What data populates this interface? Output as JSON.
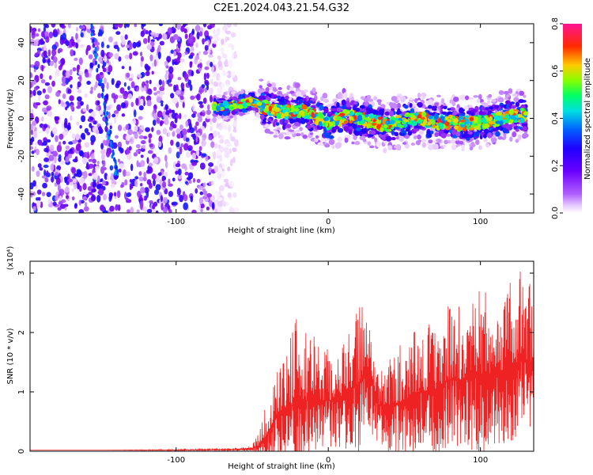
{
  "title": "C2E1.2024.043.21.54.G32",
  "colors": {
    "snr_line": "#ee2222",
    "spec_palette": [
      "#ffffff",
      "#e8c8ff",
      "#b060ff",
      "#7a00f0",
      "#1f00ff",
      "#0066ff",
      "#00e0e0",
      "#00ff66",
      "#88ff00",
      "#ffcc00",
      "#ff2a00",
      "#ff1493"
    ]
  },
  "chart_data": [
    {
      "type": "heatmap",
      "title": "C2E1.2024.043.21.54.G32",
      "xlabel": "Height of straight line (km)",
      "ylabel": "Frequency (Hz)",
      "xlim": [
        -196,
        135
      ],
      "ylim": [
        -50,
        50
      ],
      "x_ticks": [
        -100,
        0,
        100
      ],
      "y_ticks": [
        -40,
        -20,
        0,
        20,
        40
      ],
      "colorbar": {
        "label": "Normalized spectral amplitude",
        "range": [
          0.0,
          0.8
        ],
        "ticks": [
          0.0,
          0.2,
          0.4,
          0.6,
          0.8
        ],
        "tick_labels": [
          "0.0",
          "0.2",
          "0.4",
          "0.6",
          "0.8"
        ]
      },
      "noise_region_x": [
        -196,
        -60
      ],
      "signal_trace": {
        "x": [
          -75,
          -60,
          -50,
          -40,
          -30,
          -20,
          -10,
          0,
          10,
          20,
          30,
          40,
          50,
          60,
          70,
          80,
          90,
          100,
          110,
          120,
          130
        ],
        "y": [
          6,
          7,
          9,
          5,
          3,
          4,
          2,
          -3,
          1,
          0,
          -2,
          -4,
          -1,
          0,
          -2,
          -2,
          -3,
          -2,
          -1,
          1,
          2
        ]
      }
    },
    {
      "type": "line",
      "xlabel": "Height of straight line (km)",
      "ylabel": "SNR (10 * v/v)",
      "y_multiplier": "(x10⁴)",
      "xlim": [
        -196,
        135
      ],
      "ylim": [
        0,
        3.2
      ],
      "x_ticks": [
        -100,
        0,
        100
      ],
      "y_ticks": [
        0,
        1,
        2,
        3
      ],
      "series": [
        {
          "x": [
            -196,
            -150,
            -100,
            -60,
            -50,
            -45,
            -40,
            -35,
            -30,
            -20,
            -10,
            0,
            10,
            20,
            28,
            32,
            40,
            50,
            60,
            70,
            80,
            90,
            100,
            110,
            120,
            130,
            135
          ],
          "y": [
            0.02,
            0.02,
            0.02,
            0.03,
            0.05,
            0.1,
            0.3,
            0.55,
            0.7,
            0.8,
            0.9,
            0.85,
            0.95,
            1.15,
            1.35,
            0.8,
            0.75,
            0.85,
            1.0,
            1.05,
            1.2,
            1.2,
            1.25,
            1.3,
            1.45,
            1.55,
            1.5
          ],
          "peak": [
            0.02,
            0.02,
            0.03,
            0.05,
            0.1,
            0.35,
            0.9,
            1.3,
            1.6,
            2.3,
            1.95,
            1.75,
            2.0,
            2.55,
            2.6,
            1.5,
            1.6,
            1.9,
            2.1,
            2.3,
            2.55,
            2.4,
            2.8,
            2.6,
            2.95,
            3.1,
            2.7
          ]
        }
      ]
    }
  ]
}
